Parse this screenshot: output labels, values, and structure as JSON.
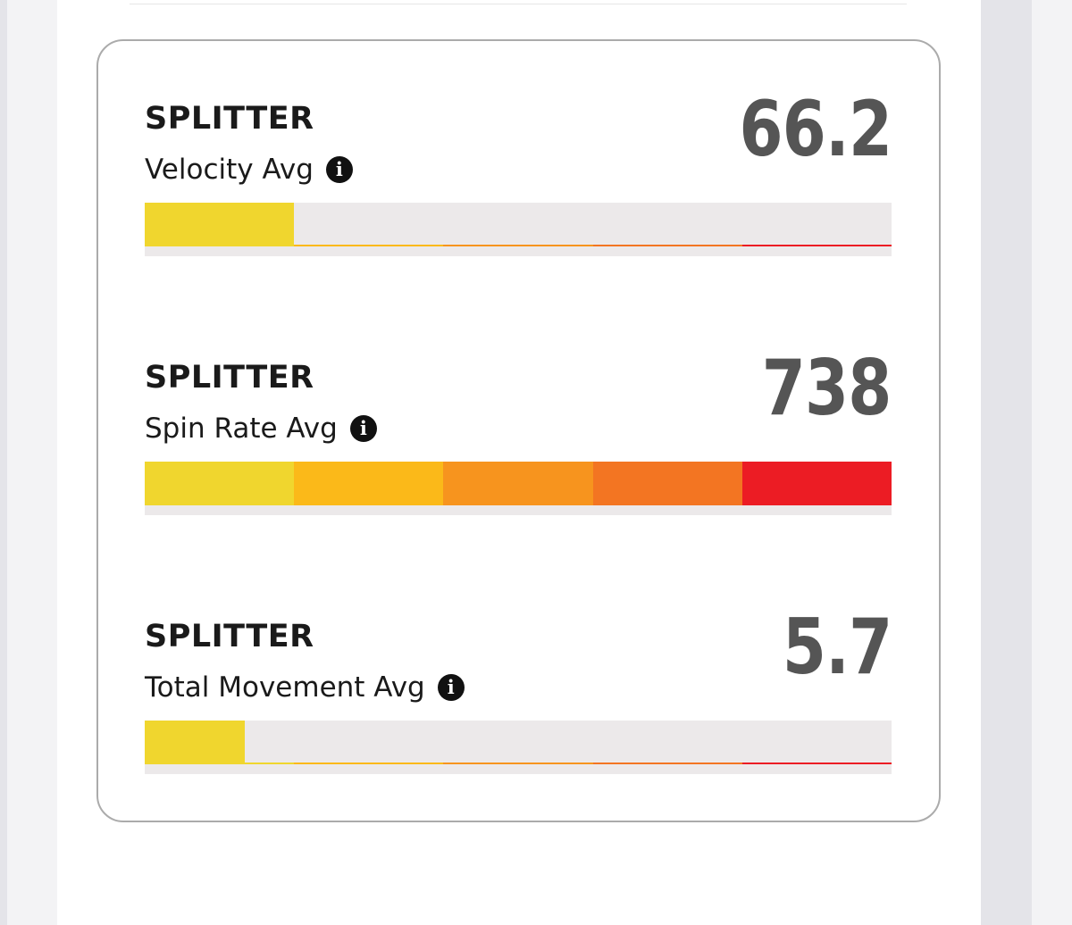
{
  "stats": [
    {
      "pitch": "SPLITTER",
      "metric": "Velocity Avg",
      "value": 66.2,
      "fill": 20
    },
    {
      "pitch": "SPLITTER",
      "metric": "Spin Rate Avg",
      "value": 738,
      "fill": 100
    },
    {
      "pitch": "SPLITTER",
      "metric": "Total Movement Avg",
      "value": 5.7,
      "fill": 13.4
    }
  ]
}
